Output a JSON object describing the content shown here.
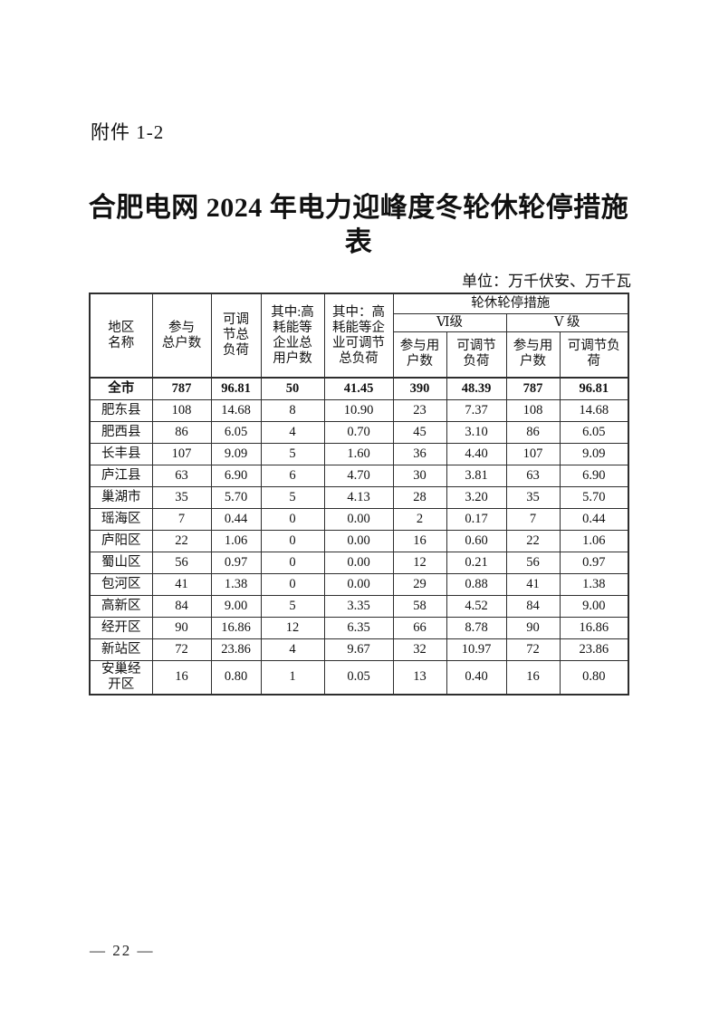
{
  "page": {
    "attachment_label": "附件 1-2",
    "title": "合肥电网 2024 年电力迎峰度冬轮休轮停措施\n表",
    "unit_note": "单位：万千伏安、万千瓦",
    "page_number": "— 22 —"
  },
  "table": {
    "headers": {
      "region": "地区\n名称",
      "participating_households": "参与\n总户数",
      "adjustable_load": "可调\n节总\n负荷",
      "high_energy_households": "其中:高\n耗能等\n企业总\n用户数",
      "high_energy_adjustable_load": "其中：高\n耗能等企\n业可调节\n总负荷",
      "measures_group": "轮休轮停措施",
      "level_vi": "Ⅵ级",
      "level_v": "Ⅴ 级",
      "vi_households": "参与用\n户数",
      "vi_load": "可调节\n负荷",
      "v_households": "参与用\n户数",
      "v_load": "可调节负\n荷"
    },
    "rows": [
      {
        "region": "全市",
        "bold": true,
        "values": [
          "787",
          "96.81",
          "50",
          "41.45",
          "390",
          "48.39",
          "787",
          "96.81"
        ]
      },
      {
        "region": "肥东县",
        "values": [
          "108",
          "14.68",
          "8",
          "10.90",
          "23",
          "7.37",
          "108",
          "14.68"
        ]
      },
      {
        "region": "肥西县",
        "values": [
          "86",
          "6.05",
          "4",
          "0.70",
          "45",
          "3.10",
          "86",
          "6.05"
        ]
      },
      {
        "region": "长丰县",
        "values": [
          "107",
          "9.09",
          "5",
          "1.60",
          "36",
          "4.40",
          "107",
          "9.09"
        ]
      },
      {
        "region": "庐江县",
        "values": [
          "63",
          "6.90",
          "6",
          "4.70",
          "30",
          "3.81",
          "63",
          "6.90"
        ]
      },
      {
        "region": "巢湖市",
        "values": [
          "35",
          "5.70",
          "5",
          "4.13",
          "28",
          "3.20",
          "35",
          "5.70"
        ]
      },
      {
        "region": "瑶海区",
        "values": [
          "7",
          "0.44",
          "0",
          "0.00",
          "2",
          "0.17",
          "7",
          "0.44"
        ]
      },
      {
        "region": "庐阳区",
        "values": [
          "22",
          "1.06",
          "0",
          "0.00",
          "16",
          "0.60",
          "22",
          "1.06"
        ]
      },
      {
        "region": "蜀山区",
        "values": [
          "56",
          "0.97",
          "0",
          "0.00",
          "12",
          "0.21",
          "56",
          "0.97"
        ]
      },
      {
        "region": "包河区",
        "values": [
          "41",
          "1.38",
          "0",
          "0.00",
          "29",
          "0.88",
          "41",
          "1.38"
        ]
      },
      {
        "region": "高新区",
        "values": [
          "84",
          "9.00",
          "5",
          "3.35",
          "58",
          "4.52",
          "84",
          "9.00"
        ]
      },
      {
        "region": "经开区",
        "values": [
          "90",
          "16.86",
          "12",
          "6.35",
          "66",
          "8.78",
          "90",
          "16.86"
        ]
      },
      {
        "region": "新站区",
        "values": [
          "72",
          "23.86",
          "4",
          "9.67",
          "32",
          "10.97",
          "72",
          "23.86"
        ]
      },
      {
        "region": "安巢经\n开区",
        "values": [
          "16",
          "0.80",
          "1",
          "0.05",
          "13",
          "0.40",
          "16",
          "0.80"
        ]
      }
    ]
  }
}
